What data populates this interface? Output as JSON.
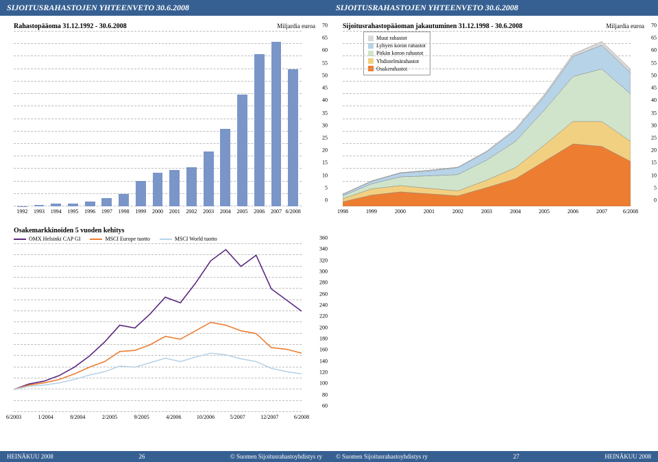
{
  "header_left": "SIJOITUSRAHASTOJEN YHTEENVETO 30.6.2008",
  "header_right": "SIJOITUSRAHASTOJEN YHTEENVETO 30.6.2008",
  "bar_chart": {
    "title": "Rahastopääoma 31.12.1992 - 30.6.2008",
    "unit": "Miljardia euroa",
    "categories": [
      "1992",
      "1993",
      "1994",
      "1995",
      "1996",
      "1997",
      "1998",
      "1999",
      "2000",
      "2001",
      "2002",
      "2003",
      "2004",
      "2005",
      "2006",
      "2007",
      "6/2008"
    ],
    "values": [
      0.1,
      0.6,
      1.0,
      1.1,
      2.0,
      3.2,
      4.9,
      10.2,
      13.5,
      14.5,
      15.7,
      22.1,
      31.1,
      44.7,
      61.0,
      66.0,
      55.0
    ],
    "ylim": [
      0,
      70
    ],
    "ytick_step": 5,
    "bar_color": "#7a95c8",
    "grid_color": "#bbbbbb",
    "background_color": "#ffffff"
  },
  "area_chart": {
    "title": "Sijoitusrahastopääoman jakautuminen 31.12.1998 - 30.6.2008",
    "unit": "Miljardia euroa",
    "categories": [
      "1998",
      "1999",
      "2000",
      "2001",
      "2002",
      "2003",
      "2004",
      "2005",
      "2006",
      "2007",
      "6/2008"
    ],
    "series": [
      {
        "name": "Osakerahastot",
        "color": "#ed7d31",
        "values": [
          1.8,
          4.5,
          5.8,
          5.0,
          4.2,
          7.5,
          11.0,
          18.0,
          25.0,
          24.0,
          18.0
        ]
      },
      {
        "name": "Yhdistelmärahastot",
        "color": "#f2d081",
        "values": [
          1.2,
          2.5,
          2.5,
          2.2,
          2.0,
          3.0,
          4.5,
          6.5,
          9.0,
          10.0,
          8.0
        ]
      },
      {
        "name": "Pitkän koron rahastot",
        "color": "#cfe4cb",
        "values": [
          1.2,
          2.0,
          3.5,
          5.0,
          6.5,
          8.0,
          10.5,
          14.0,
          18.0,
          21.0,
          19.0
        ]
      },
      {
        "name": "Lyhyen koron rahastot",
        "color": "#b7d3e8",
        "values": [
          0.6,
          1.0,
          1.5,
          2.0,
          2.8,
          3.3,
          4.5,
          5.5,
          8.0,
          9.5,
          8.5
        ]
      },
      {
        "name": "Muut rahastot",
        "color": "#d9d9d9",
        "values": [
          0.1,
          0.2,
          0.2,
          0.3,
          0.2,
          0.3,
          0.6,
          0.7,
          1.0,
          1.5,
          1.5
        ]
      }
    ],
    "ylim": [
      0,
      70
    ],
    "ytick_step": 5,
    "grid_color": "#bbbbbb"
  },
  "line_chart": {
    "title": "Osakemarkkinoiden 5 vuoden kehitys",
    "series": [
      {
        "name": "OMX Helsinki CAP GI",
        "color": "#5b277d"
      },
      {
        "name": "MSCI Europe tuotto",
        "color": "#ed7d31"
      },
      {
        "name": "MSCI World tuotto",
        "color": "#b7d3e8"
      }
    ],
    "x_labels": [
      "6/2003",
      "1/2004",
      "8/2004",
      "2/2005",
      "9/2005",
      "4/2006",
      "10/2006",
      "5/2007",
      "12/2007",
      "6/2008"
    ],
    "ylim": [
      60,
      360
    ],
    "yticks": [
      60,
      80,
      100,
      120,
      140,
      160,
      180,
      200,
      220,
      240,
      260,
      280,
      300,
      320,
      340,
      360
    ],
    "grid_color": "#bbbbbb",
    "data": {
      "omx": [
        100,
        110,
        115,
        125,
        140,
        160,
        185,
        215,
        210,
        235,
        265,
        255,
        290,
        330,
        350,
        320,
        340,
        280,
        260,
        240
      ],
      "eur": [
        100,
        108,
        112,
        118,
        128,
        140,
        150,
        168,
        170,
        180,
        195,
        190,
        205,
        220,
        215,
        205,
        200,
        175,
        172,
        165
      ],
      "wld": [
        100,
        106,
        108,
        112,
        118,
        126,
        132,
        142,
        140,
        148,
        156,
        150,
        158,
        165,
        162,
        155,
        150,
        138,
        132,
        128
      ]
    }
  },
  "footer": {
    "left_a": "HEINÄKUU 2008",
    "left_b": "26",
    "left_c": "© Suomen Sijoitusrahastoyhdistys ry",
    "right_a": "© Suomen Sijoitusrahastoyhdistys ry",
    "right_b": "27",
    "right_c": "HEINÄKUU 2008"
  }
}
